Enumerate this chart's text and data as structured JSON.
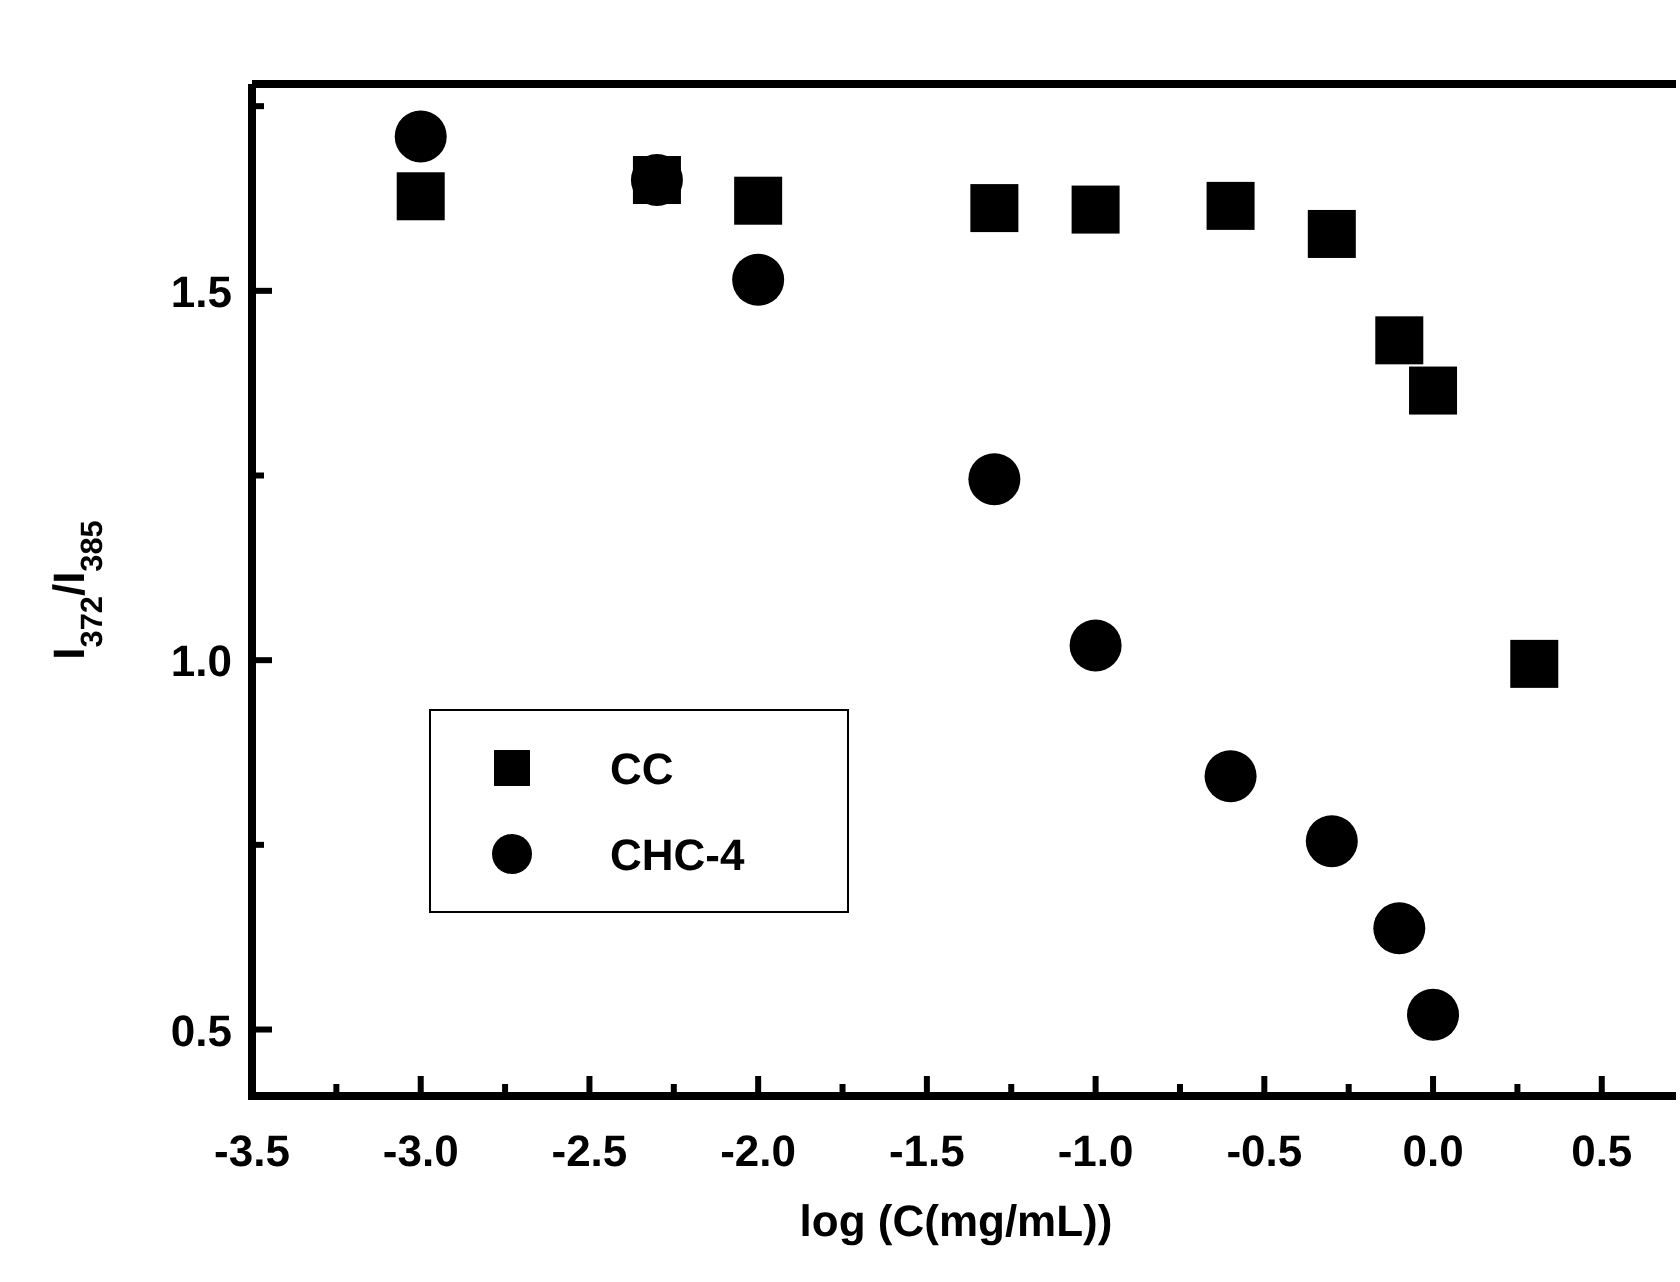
{
  "chart_data": {
    "type": "scatter",
    "xlabel": "log (C(mg/mL))",
    "ylabel": "I$_{372}$/I$_{385}$",
    "xlim": [
      -3.5,
      0.72
    ],
    "ylim": [
      0.41,
      1.78
    ],
    "xticks": [
      -3.5,
      {
        "value": -3.25,
        "label": null
      },
      {
        "value": -3,
        "label": "-3.0"
      },
      {
        "value": -2.75,
        "label": null
      },
      -2.5,
      {
        "value": -2.25,
        "label": null
      },
      {
        "value": -2,
        "label": "-2.0"
      },
      {
        "value": -1.75,
        "label": null
      },
      -1.5,
      {
        "value": -1.25,
        "label": null
      },
      {
        "value": -1,
        "label": "-1.0"
      },
      {
        "value": -0.75,
        "label": null
      },
      -0.5,
      {
        "value": -0.25,
        "label": null
      },
      {
        "value": 0,
        "label": "0.0"
      },
      {
        "value": 0.25,
        "label": null
      },
      0.5
    ],
    "yticks": [
      0.5,
      {
        "value": 0.75,
        "label": null
      },
      {
        "value": 1,
        "label": "1.0"
      },
      {
        "value": 1.25,
        "label": null
      },
      1.5,
      {
        "value": 1.75,
        "label": null
      }
    ],
    "grid": false,
    "legend": "left",
    "series": [
      {
        "name": "CC",
        "color": "#000000",
        "marker": "square",
        "x": [
          -3,
          -2.3,
          -2,
          -1.3,
          -1,
          -0.6,
          -0.3,
          -0.1,
          0,
          0.3
        ],
        "values": [
          1.628,
          1.65,
          1.622,
          1.612,
          1.61,
          1.615,
          1.577,
          1.433,
          1.365,
          0.995
        ]
      },
      {
        "name": "CHC-4",
        "color": "#000000",
        "marker": "circle",
        "x": [
          -3,
          -2.3,
          -2,
          -1.3,
          -1,
          -0.6,
          -0.3,
          -0.1,
          0
        ],
        "values": [
          1.709,
          1.65,
          1.515,
          1.245,
          1.02,
          0.843,
          0.755,
          0.637,
          0.52
        ]
      }
    ]
  }
}
